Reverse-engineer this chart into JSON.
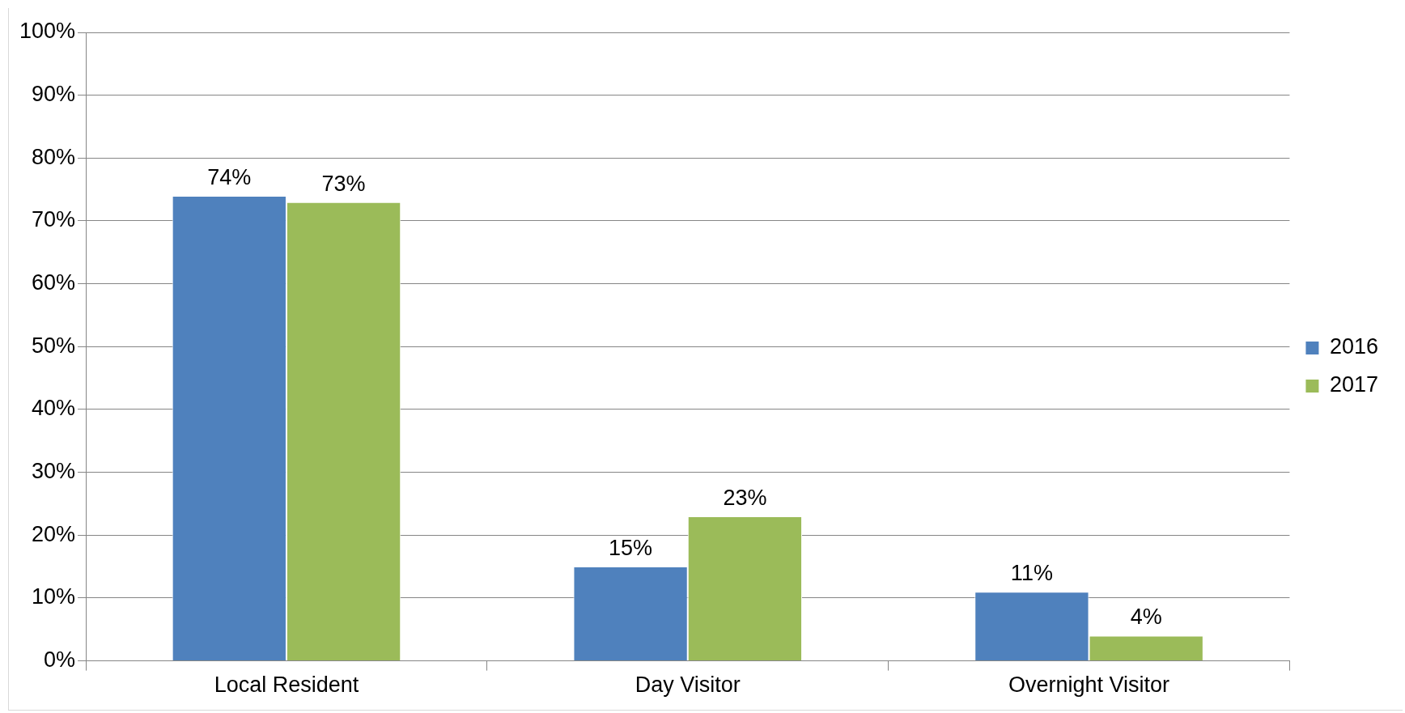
{
  "chart_data": {
    "type": "bar",
    "categories": [
      "Local Resident",
      "Day Visitor",
      "Overnight Visitor"
    ],
    "series": [
      {
        "name": "2016",
        "color": "#4f81bd",
        "values": [
          74,
          15,
          11
        ],
        "value_labels": [
          "74%",
          "15%",
          "11%"
        ]
      },
      {
        "name": "2017",
        "color": "#9bbb59",
        "values": [
          73,
          23,
          4
        ],
        "value_labels": [
          "73%",
          "23%",
          "4%"
        ]
      }
    ],
    "ylim": [
      0,
      100
    ],
    "yticks": [
      {
        "value": 0,
        "label": "0%"
      },
      {
        "value": 10,
        "label": "10%"
      },
      {
        "value": 20,
        "label": "20%"
      },
      {
        "value": 30,
        "label": "30%"
      },
      {
        "value": 40,
        "label": "40%"
      },
      {
        "value": 50,
        "label": "50%"
      },
      {
        "value": 60,
        "label": "60%"
      },
      {
        "value": 70,
        "label": "70%"
      },
      {
        "value": 80,
        "label": "80%"
      },
      {
        "value": 90,
        "label": "90%"
      },
      {
        "value": 100,
        "label": "100%"
      }
    ],
    "grid": "y",
    "legend": "right"
  }
}
